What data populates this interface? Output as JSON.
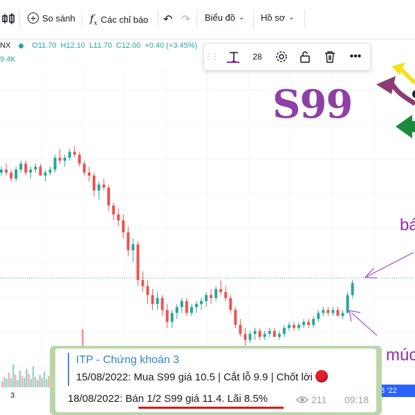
{
  "toolbar": {
    "compare_label": "So sánh",
    "indicators_label": "Các chỉ báo",
    "chart_type_label": "Biểu đồ",
    "profile_label": "Hồ sơ"
  },
  "legend": {
    "symbol_tail": "NX",
    "open": "O11.70",
    "high": "H12.10",
    "low": "L11.70",
    "close": "C12.00",
    "change": "+0.40 (+3.45%)",
    "volume": "9.4K"
  },
  "drawing_toolbar": {
    "font_size": "28"
  },
  "annotations": {
    "big_label": "S99",
    "right_text_1": "bá",
    "right_text_2": "múc"
  },
  "axis": {
    "x_label_3": "3",
    "date_badge": "g 8 '22"
  },
  "message": {
    "title": "ITP - Chứng khoán 3",
    "line1": "15/08/2022: Mua S99 giá 10.5 | Cắt lỗ 9.9 | Chốt lời",
    "line2_date": "18/08/2022: ",
    "line2_text": "Bán 1/2 S99 giá 11.4. Lãi 8.5%",
    "views": "211",
    "time": "09:18"
  },
  "colors": {
    "up": "#26a69a",
    "down": "#ef5350",
    "accent_purple": "#9c27b0",
    "arrow_green": "#1b8a3a",
    "arrow_yellow": "#f2e21a",
    "arrow_plum": "#8a3c74"
  },
  "icons": [
    "candles-icon",
    "plus-circle-icon",
    "fx-icon",
    "undo-icon",
    "redo-icon",
    "chevron-down-icon",
    "text-tool-icon",
    "gear-icon",
    "lock-icon",
    "trash-icon",
    "more-icon",
    "eye-icon",
    "drag-handle-icon"
  ],
  "chart_data": {
    "type": "candlestick",
    "note": "approximate daily OHLC series (normalized price 0-100 scale, higher = higher price)",
    "candles": [
      [
        58,
        60,
        57,
        59
      ],
      [
        59,
        61,
        57,
        58
      ],
      [
        58,
        59,
        55,
        56
      ],
      [
        56,
        60,
        55,
        59
      ],
      [
        59,
        62,
        58,
        61
      ],
      [
        61,
        62,
        57,
        58
      ],
      [
        58,
        60,
        56,
        59
      ],
      [
        59,
        61,
        58,
        60
      ],
      [
        60,
        61,
        57,
        57
      ],
      [
        57,
        59,
        55,
        58
      ],
      [
        58,
        60,
        57,
        59
      ],
      [
        59,
        64,
        58,
        63
      ],
      [
        63,
        66,
        61,
        62
      ],
      [
        62,
        64,
        60,
        63
      ],
      [
        63,
        66,
        62,
        65
      ],
      [
        65,
        67,
        63,
        64
      ],
      [
        64,
        65,
        60,
        61
      ],
      [
        61,
        62,
        57,
        58
      ],
      [
        58,
        60,
        55,
        57
      ],
      [
        57,
        58,
        50,
        52
      ],
      [
        52,
        55,
        49,
        54
      ],
      [
        54,
        56,
        52,
        53
      ],
      [
        53,
        54,
        45,
        47
      ],
      [
        47,
        48,
        42,
        44
      ],
      [
        44,
        46,
        40,
        42
      ],
      [
        42,
        44,
        36,
        38
      ],
      [
        38,
        40,
        30,
        32
      ],
      [
        32,
        36,
        28,
        34
      ],
      [
        34,
        35,
        20,
        22
      ],
      [
        22,
        25,
        18,
        20
      ],
      [
        20,
        22,
        14,
        17
      ],
      [
        17,
        19,
        12,
        14
      ],
      [
        14,
        18,
        12,
        16
      ],
      [
        16,
        17,
        10,
        12
      ],
      [
        12,
        14,
        6,
        8
      ],
      [
        8,
        12,
        6,
        11
      ],
      [
        11,
        14,
        9,
        13
      ],
      [
        13,
        16,
        11,
        15
      ],
      [
        15,
        16,
        10,
        11
      ],
      [
        11,
        14,
        10,
        13
      ],
      [
        13,
        15,
        11,
        14
      ],
      [
        14,
        16,
        12,
        15
      ],
      [
        15,
        18,
        13,
        17
      ],
      [
        17,
        19,
        14,
        16
      ],
      [
        16,
        20,
        15,
        19
      ],
      [
        19,
        22,
        17,
        18
      ],
      [
        18,
        20,
        15,
        16
      ],
      [
        16,
        17,
        11,
        12
      ],
      [
        12,
        13,
        6,
        7
      ],
      [
        7,
        9,
        3,
        4
      ],
      [
        4,
        6,
        0,
        2
      ],
      [
        2,
        5,
        1,
        4
      ],
      [
        4,
        6,
        2,
        5
      ],
      [
        5,
        6,
        2,
        3
      ],
      [
        3,
        5,
        2,
        4
      ],
      [
        4,
        6,
        3,
        5
      ],
      [
        5,
        6,
        3,
        3
      ],
      [
        3,
        5,
        2,
        4
      ],
      [
        4,
        7,
        3,
        6
      ],
      [
        6,
        8,
        5,
        7
      ],
      [
        7,
        8,
        5,
        6
      ],
      [
        6,
        8,
        5,
        7
      ],
      [
        7,
        9,
        6,
        8
      ],
      [
        8,
        9,
        6,
        7
      ],
      [
        7,
        10,
        6,
        9
      ],
      [
        9,
        12,
        8,
        11
      ],
      [
        11,
        13,
        10,
        12
      ],
      [
        12,
        13,
        10,
        11
      ],
      [
        11,
        13,
        10,
        12
      ],
      [
        12,
        13,
        10,
        10
      ],
      [
        10,
        12,
        9,
        11
      ],
      [
        11,
        18,
        11,
        17
      ],
      [
        17,
        22,
        16,
        21
      ]
    ]
  }
}
